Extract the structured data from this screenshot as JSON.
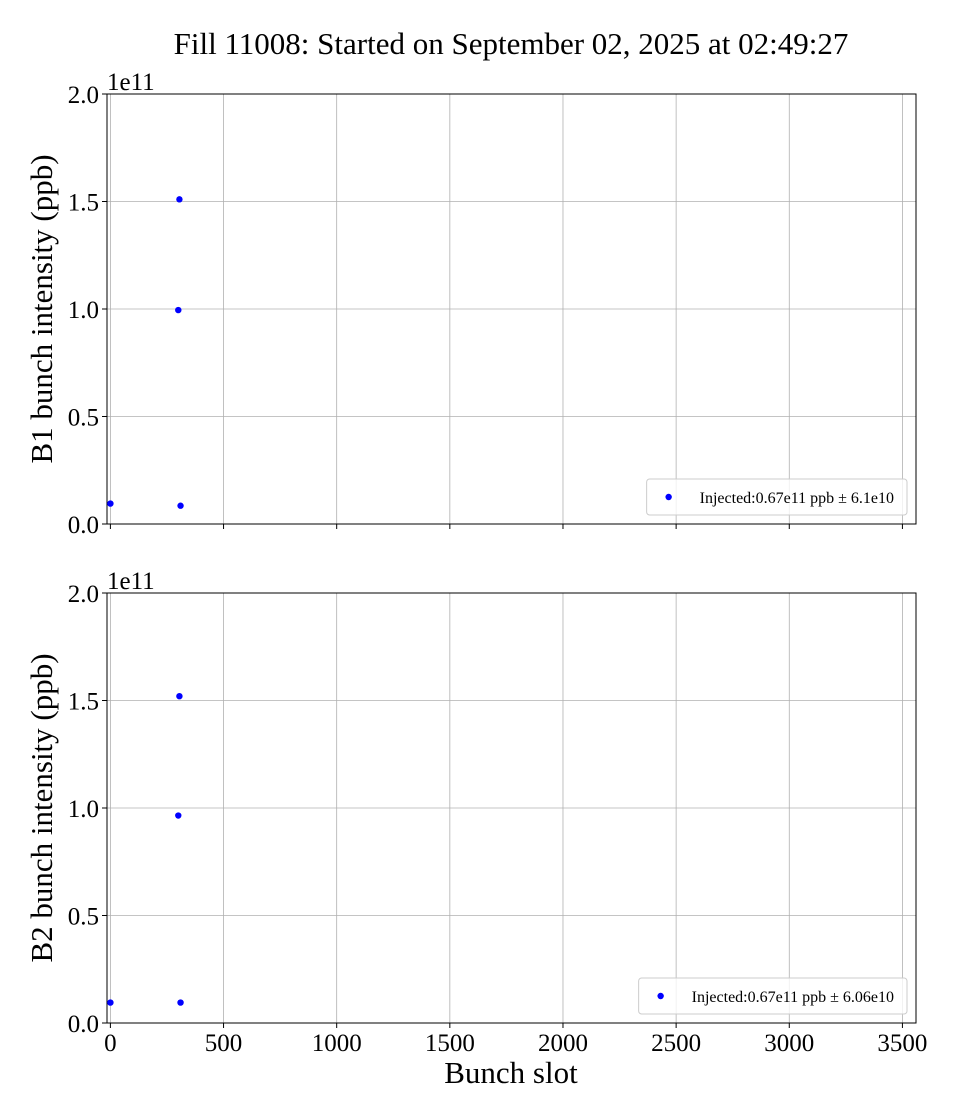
{
  "chart_data": {
    "title": "Fill 11008: Started on September 02, 2025 at 02:49:27",
    "shared_x": {
      "label": "Bunch slot",
      "range": [
        -15,
        3560
      ],
      "ticks": [
        0,
        500,
        1000,
        1500,
        2000,
        2500,
        3000,
        3500
      ]
    },
    "panels": [
      {
        "type": "scatter",
        "ylabel": "B1 bunch intensity (ppb)",
        "offset_label": "1e11",
        "ylim": [
          0,
          2.0
        ],
        "yticks": [
          "0.0",
          "0.5",
          "1.0",
          "1.5",
          "2.0"
        ],
        "grid": true,
        "legend_position": "lower-right",
        "color": "#0000ff",
        "series": [
          {
            "name": "Injected:0.67e11 ppb ± 6.1e10",
            "points": [
              [
                0,
                0.095
              ],
              [
                300,
                0.995
              ],
              [
                305,
                1.51
              ],
              [
                310,
                0.085
              ]
            ]
          }
        ]
      },
      {
        "type": "scatter",
        "ylabel": "B2 bunch intensity (ppb)",
        "offset_label": "1e11",
        "ylim": [
          0,
          2.0
        ],
        "yticks": [
          "0.0",
          "0.5",
          "1.0",
          "1.5",
          "2.0"
        ],
        "grid": true,
        "legend_position": "lower-right",
        "color": "#0000ff",
        "series": [
          {
            "name": "Injected:0.67e11 ppb ± 6.06e10",
            "points": [
              [
                0,
                0.095
              ],
              [
                300,
                0.965
              ],
              [
                305,
                1.52
              ],
              [
                310,
                0.095
              ]
            ]
          }
        ]
      }
    ]
  }
}
